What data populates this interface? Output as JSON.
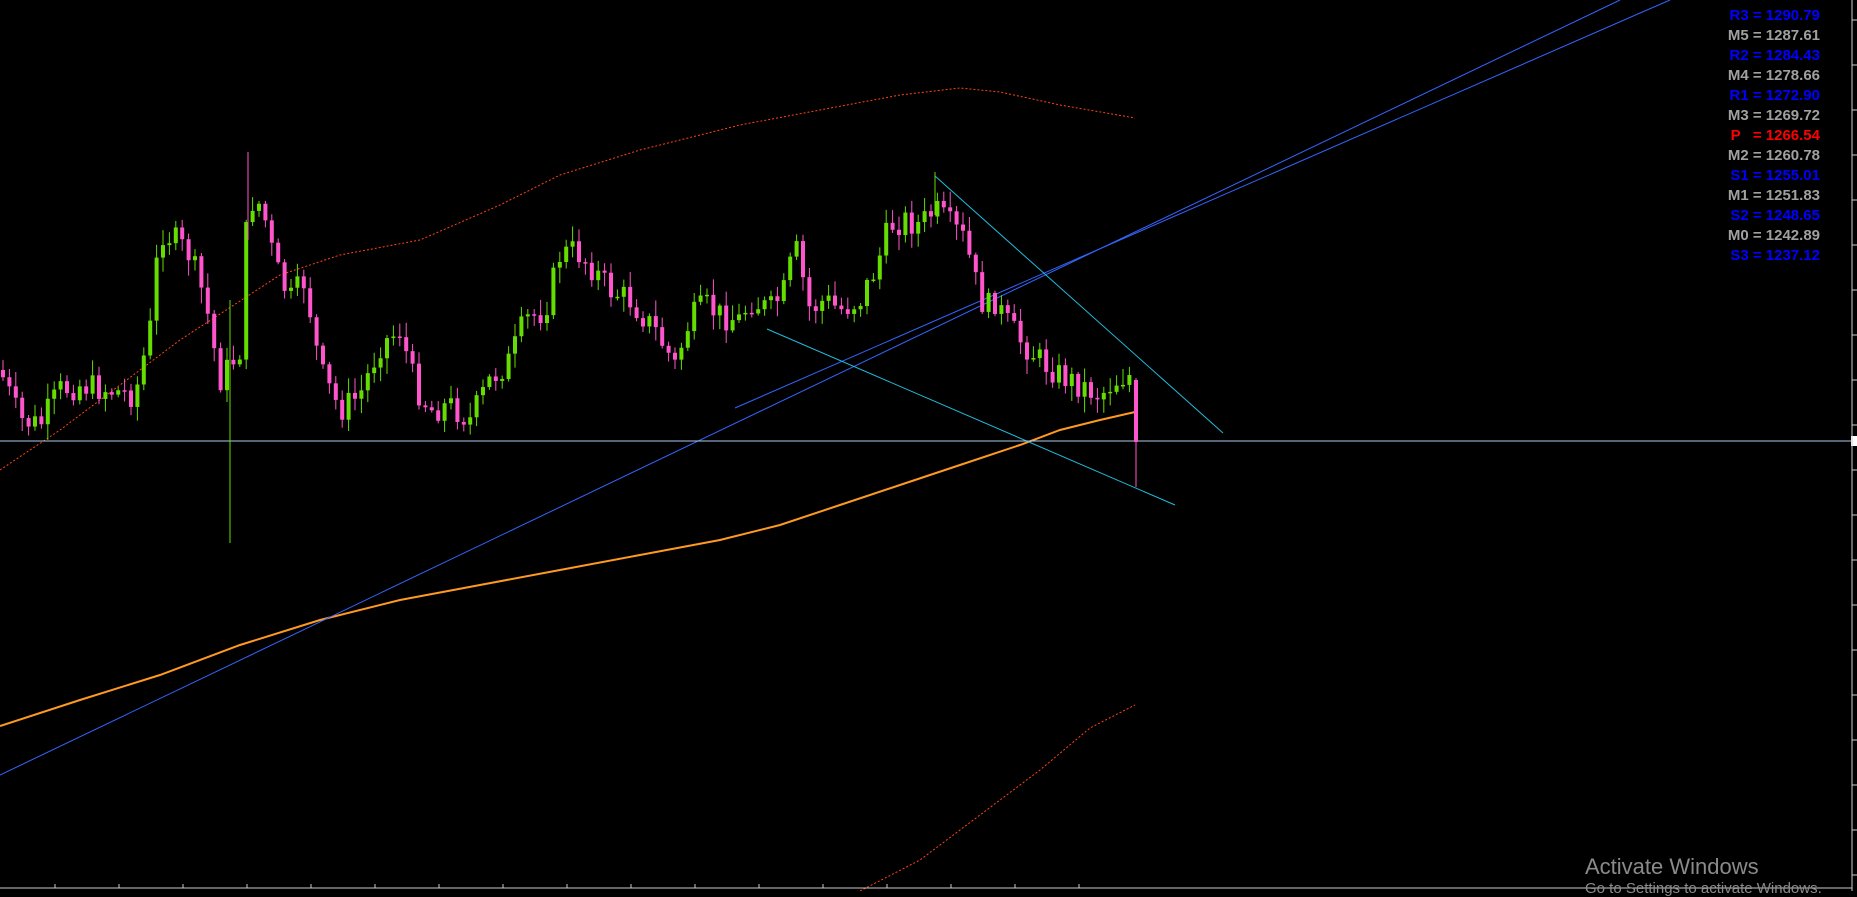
{
  "chart_data": {
    "type": "candlestick",
    "y_range": [
      1195,
      1302
    ],
    "pivot_levels": [
      {
        "label": "R3 = 1290.79",
        "value": 1290.79,
        "color": "#0000ff"
      },
      {
        "label": "M5 = 1287.61",
        "value": 1287.61,
        "color": "#a0a0a0"
      },
      {
        "label": "R2 = 1284.43",
        "value": 1284.43,
        "color": "#0000ff"
      },
      {
        "label": "M4 = 1278.66",
        "value": 1278.66,
        "color": "#a0a0a0"
      },
      {
        "label": "R1 = 1272.90",
        "value": 1272.9,
        "color": "#0000ff"
      },
      {
        "label": "M3 = 1269.72",
        "value": 1269.72,
        "color": "#a0a0a0"
      },
      {
        "label": "P   = 1266.54",
        "value": 1266.54,
        "color": "#ff0000"
      },
      {
        "label": "M2 = 1260.78",
        "value": 1260.78,
        "color": "#a0a0a0"
      },
      {
        "label": "S1 = 1255.01",
        "value": 1255.01,
        "color": "#0000ff"
      },
      {
        "label": "M1 = 1251.83",
        "value": 1251.83,
        "color": "#a0a0a0"
      },
      {
        "label": "S2 = 1248.65",
        "value": 1248.65,
        "color": "#0000ff"
      },
      {
        "label": "M0 = 1242.89",
        "value": 1242.89,
        "color": "#a0a0a0"
      },
      {
        "label": "S3 = 1237.12",
        "value": 1237.12,
        "color": "#0000ff"
      }
    ],
    "colors": {
      "up": "#66dd00",
      "down": "#ff55cc",
      "ma": "#ff9922",
      "band": "#ff4411",
      "trendline_blue": "#3366ff",
      "trendline_cyan": "#22bbdd",
      "current_price_line": "#aaccee"
    }
  },
  "watermark": {
    "title": "Activate Windows",
    "subtitle": "Go to Settings to activate Windows."
  }
}
